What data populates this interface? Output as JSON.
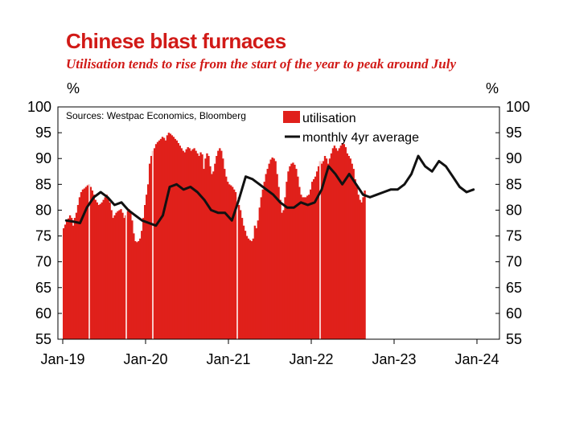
{
  "chart_data": {
    "type": "bar+line",
    "title": "Chinese blast furnaces",
    "subtitle": "Utilisation tends to rise from the start of the year to peak around July",
    "source": "Sources: Westpac Economics, Bloomberg",
    "y_unit_left": "%",
    "y_unit_right": "%",
    "ylim": [
      55,
      100
    ],
    "y_ticks": [
      "55",
      "60",
      "65",
      "70",
      "75",
      "80",
      "85",
      "90",
      "95",
      "100"
    ],
    "x_ticks": [
      "Jan-19",
      "Jan-20",
      "Jan-21",
      "Jan-22",
      "Jan-23",
      "Jan-24"
    ],
    "grid": false,
    "legend_position": "top-center",
    "colors": {
      "bars": "#e0201b",
      "line": "#111111",
      "title": "#d11a17"
    },
    "series": [
      {
        "name": "utilisation",
        "type": "bar",
        "x_start_month": "Jan-19",
        "interval": "weekly",
        "values": [
          76.5,
          77.2,
          77.8,
          78.4,
          79.0,
          78.5,
          77.0,
          78.5,
          79.5,
          81.0,
          82.5,
          83.5,
          84.0,
          84.2,
          84.5,
          84.8,
          85.0,
          84.5,
          83.8,
          83.0,
          82.0,
          81.5,
          81.0,
          81.2,
          81.5,
          82.0,
          82.5,
          83.0,
          82.5,
          81.5,
          80.0,
          78.5,
          79.0,
          79.5,
          79.8,
          80.0,
          80.2,
          79.5,
          78.5,
          79.0,
          79.8,
          80.2,
          79.5,
          78.0,
          75.5,
          74.0,
          73.8,
          74.0,
          74.5,
          76.0,
          78.5,
          81.0,
          83.0,
          85.0,
          89.0,
          90.5,
          91.5,
          92.0,
          92.8,
          93.2,
          93.5,
          93.8,
          94.2,
          94.0,
          93.5,
          94.5,
          95.0,
          94.8,
          94.5,
          94.2,
          93.8,
          93.5,
          93.0,
          92.5,
          92.0,
          91.5,
          91.2,
          91.8,
          92.2,
          92.0,
          91.5,
          91.8,
          92.0,
          91.5,
          91.0,
          90.5,
          91.2,
          90.8,
          88.0,
          90.0,
          91.0,
          90.5,
          88.5,
          87.0,
          87.5,
          89.0,
          90.5,
          91.5,
          92.0,
          91.5,
          90.0,
          88.0,
          86.5,
          85.5,
          85.0,
          84.8,
          84.5,
          84.0,
          83.5,
          82.5,
          81.0,
          80.0,
          78.5,
          77.0,
          76.0,
          75.0,
          74.5,
          74.2,
          74.0,
          74.5,
          77.0,
          76.5,
          78.0,
          80.5,
          82.5,
          84.0,
          85.5,
          87.0,
          88.0,
          89.0,
          89.8,
          90.2,
          90.0,
          89.5,
          87.0,
          84.5,
          82.0,
          79.5,
          80.0,
          82.5,
          85.5,
          87.5,
          88.5,
          89.0,
          89.2,
          88.8,
          88.0,
          86.5,
          84.5,
          83.0,
          82.5,
          82.5,
          82.5,
          82.8,
          83.0,
          84.0,
          85.5,
          86.0,
          86.5,
          87.5,
          88.5,
          89.5,
          89.0,
          89.5,
          90.5,
          90.0,
          89.0,
          90.0,
          91.0,
          92.0,
          92.5,
          92.0,
          91.5,
          92.0,
          92.5,
          93.0,
          92.8,
          92.2,
          91.0,
          90.5,
          90.0,
          89.0,
          88.0,
          86.0,
          84.5,
          83.0,
          82.0,
          81.5,
          82.5,
          83.8
        ]
      },
      {
        "name": "monthly 4yr average",
        "type": "line",
        "x_start_month": "Jan-19",
        "interval": "monthly",
        "values": [
          78.0,
          77.8,
          77.5,
          80.5,
          82.5,
          83.5,
          82.5,
          81.0,
          81.5,
          80.0,
          79.0,
          78.0,
          77.5,
          77.0,
          79.0,
          84.5,
          85.0,
          84.0,
          84.5,
          83.5,
          82.0,
          80.0,
          79.5,
          79.5,
          78.0,
          82.0,
          86.5,
          86.0,
          85.0,
          84.0,
          83.0,
          81.5,
          80.5,
          80.5,
          81.5,
          81.0,
          81.5,
          84.0,
          88.5,
          87.0,
          85.0,
          87.0,
          85.0,
          83.0,
          82.5,
          83.0,
          83.5,
          84.0,
          84.0,
          85.0,
          87.0,
          90.5,
          88.5,
          87.5,
          89.5,
          88.5,
          86.5,
          84.5,
          83.5,
          84.0
        ]
      }
    ]
  }
}
